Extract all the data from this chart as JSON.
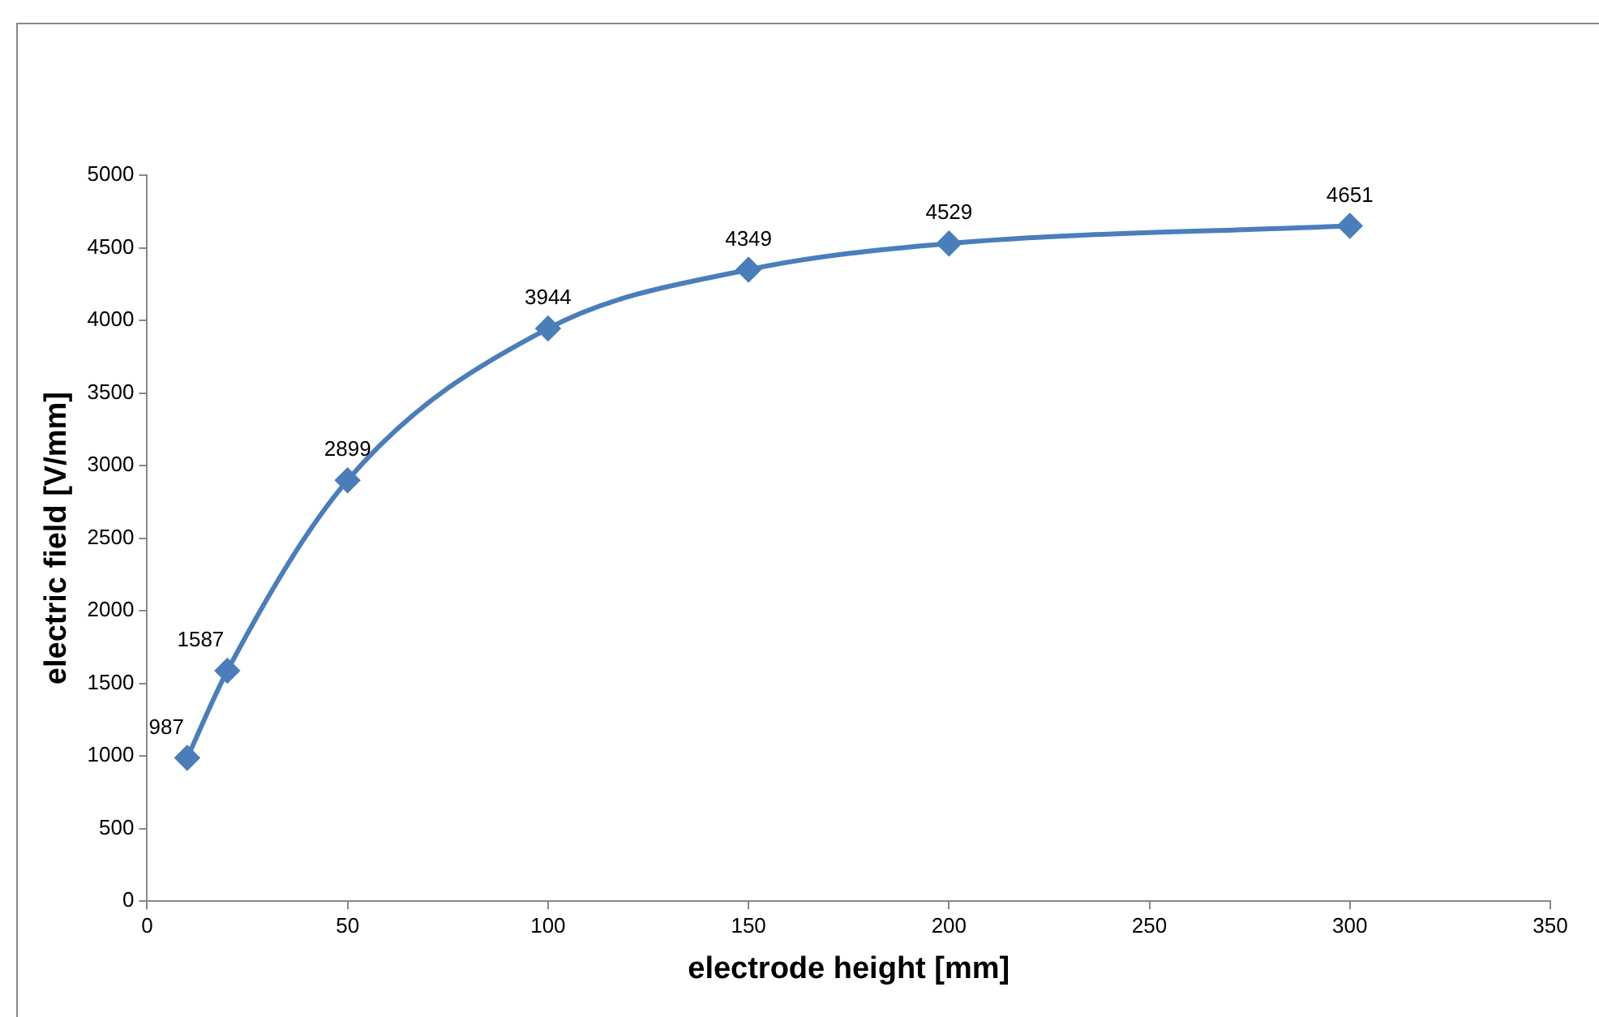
{
  "chart_data": {
    "type": "line",
    "xlabel": "electrode height [mm]",
    "ylabel": "electric field [V/mm]",
    "x": [
      10,
      20,
      50,
      100,
      150,
      200,
      300
    ],
    "series": [
      {
        "color": "#4a7ebb",
        "values": [
          987,
          1587,
          2899,
          3944,
          4349,
          4529,
          4651
        ]
      }
    ],
    "xlim": [
      0,
      350
    ],
    "xticks": [
      0,
      50,
      100,
      150,
      200,
      250,
      300,
      350
    ],
    "ylim": [
      0,
      5000
    ],
    "yticks": [
      0,
      500,
      1000,
      1500,
      2000,
      2500,
      3000,
      3500,
      4000,
      4500,
      5000
    ],
    "grid": false,
    "legend": false,
    "marker": "diamond",
    "line_style": "solid",
    "data_labels": true
  }
}
